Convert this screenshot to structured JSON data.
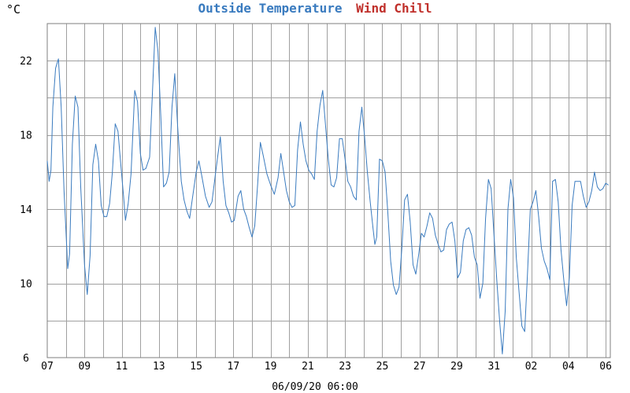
{
  "chart_data": {
    "type": "line",
    "title": "Outside Temperature Wind Chill",
    "legend": [
      {
        "name": "Outside Temperature",
        "color": "#3a7bbf"
      },
      {
        "name": "Wind Chill",
        "color": "#c0302b"
      }
    ],
    "unit_label": "°C",
    "xlabel": "06/09/20 06:00",
    "x_tick_labels": [
      "07",
      "09",
      "11",
      "13",
      "15",
      "17",
      "19",
      "21",
      "23",
      "25",
      "27",
      "29",
      "31",
      "02",
      "04",
      "06"
    ],
    "x_tick_days": [
      0,
      2,
      4,
      6,
      8,
      10,
      12,
      14,
      16,
      18,
      20,
      22,
      24,
      26,
      28,
      30
    ],
    "xlim_days": [
      0,
      30.25
    ],
    "y_tick_labels": [
      "6",
      "10",
      "14",
      "18",
      "22"
    ],
    "y_ticks": [
      6,
      10,
      14,
      18,
      22
    ],
    "ylim": [
      6,
      24
    ],
    "series": [
      {
        "name": "Outside Temperature",
        "color": "#3a7bbf",
        "points": [
          [
            0.0,
            16.6
          ],
          [
            0.1,
            15.5
          ],
          [
            0.2,
            16.1
          ],
          [
            0.3,
            19.5
          ],
          [
            0.45,
            21.6
          ],
          [
            0.6,
            22.1
          ],
          [
            0.75,
            19.5
          ],
          [
            0.9,
            15.0
          ],
          [
            1.1,
            10.8
          ],
          [
            1.2,
            11.6
          ],
          [
            1.35,
            17.5
          ],
          [
            1.5,
            20.1
          ],
          [
            1.65,
            19.5
          ],
          [
            1.8,
            15.2
          ],
          [
            2.0,
            11.0
          ],
          [
            2.15,
            9.4
          ],
          [
            2.3,
            11.5
          ],
          [
            2.45,
            16.4
          ],
          [
            2.6,
            17.5
          ],
          [
            2.75,
            16.6
          ],
          [
            2.9,
            14.2
          ],
          [
            3.05,
            13.6
          ],
          [
            3.2,
            13.6
          ],
          [
            3.35,
            14.3
          ],
          [
            3.5,
            16.0
          ],
          [
            3.65,
            18.6
          ],
          [
            3.8,
            18.2
          ],
          [
            3.95,
            16.4
          ],
          [
            4.1,
            14.7
          ],
          [
            4.2,
            13.4
          ],
          [
            4.35,
            14.3
          ],
          [
            4.5,
            15.9
          ],
          [
            4.7,
            20.4
          ],
          [
            4.85,
            19.8
          ],
          [
            5.0,
            17.0
          ],
          [
            5.15,
            16.1
          ],
          [
            5.3,
            16.2
          ],
          [
            5.5,
            16.8
          ],
          [
            5.65,
            20.2
          ],
          [
            5.8,
            23.8
          ],
          [
            5.95,
            22.5
          ],
          [
            6.1,
            19.0
          ],
          [
            6.25,
            15.2
          ],
          [
            6.4,
            15.4
          ],
          [
            6.55,
            16.0
          ],
          [
            6.7,
            19.5
          ],
          [
            6.85,
            21.3
          ],
          [
            7.0,
            18.5
          ],
          [
            7.2,
            15.5
          ],
          [
            7.35,
            14.5
          ],
          [
            7.5,
            13.9
          ],
          [
            7.65,
            13.5
          ],
          [
            7.8,
            14.6
          ],
          [
            8.0,
            16.0
          ],
          [
            8.15,
            16.6
          ],
          [
            8.3,
            15.8
          ],
          [
            8.5,
            14.7
          ],
          [
            8.7,
            14.1
          ],
          [
            8.85,
            14.4
          ],
          [
            9.0,
            15.6
          ],
          [
            9.15,
            16.8
          ],
          [
            9.3,
            17.9
          ],
          [
            9.45,
            15.5
          ],
          [
            9.6,
            14.2
          ],
          [
            9.75,
            13.8
          ],
          [
            9.9,
            13.3
          ],
          [
            10.05,
            13.4
          ],
          [
            10.25,
            14.7
          ],
          [
            10.4,
            15.0
          ],
          [
            10.55,
            14.0
          ],
          [
            10.7,
            13.6
          ],
          [
            10.85,
            13.0
          ],
          [
            11.0,
            12.5
          ],
          [
            11.15,
            13.1
          ],
          [
            11.3,
            15.3
          ],
          [
            11.45,
            17.6
          ],
          [
            11.6,
            16.9
          ],
          [
            11.8,
            15.9
          ],
          [
            12.0,
            15.3
          ],
          [
            12.2,
            14.8
          ],
          [
            12.4,
            15.7
          ],
          [
            12.55,
            17.0
          ],
          [
            12.7,
            16.0
          ],
          [
            12.85,
            15.0
          ],
          [
            13.0,
            14.4
          ],
          [
            13.15,
            14.1
          ],
          [
            13.3,
            14.2
          ],
          [
            13.45,
            17.2
          ],
          [
            13.6,
            18.7
          ],
          [
            13.75,
            17.5
          ],
          [
            13.9,
            16.6
          ],
          [
            14.05,
            16.1
          ],
          [
            14.2,
            15.9
          ],
          [
            14.35,
            15.6
          ],
          [
            14.5,
            18.2
          ],
          [
            14.65,
            19.6
          ],
          [
            14.8,
            20.4
          ],
          [
            14.95,
            18.5
          ],
          [
            15.1,
            16.7
          ],
          [
            15.25,
            15.3
          ],
          [
            15.4,
            15.2
          ],
          [
            15.55,
            15.7
          ],
          [
            15.7,
            17.8
          ],
          [
            15.85,
            17.8
          ],
          [
            16.0,
            16.7
          ],
          [
            16.15,
            15.5
          ],
          [
            16.3,
            15.2
          ],
          [
            16.45,
            14.7
          ],
          [
            16.6,
            14.5
          ],
          [
            16.75,
            18.2
          ],
          [
            16.9,
            19.5
          ],
          [
            17.05,
            17.9
          ],
          [
            17.2,
            16.0
          ],
          [
            17.35,
            14.4
          ],
          [
            17.5,
            13.0
          ],
          [
            17.6,
            12.1
          ],
          [
            17.7,
            12.5
          ],
          [
            17.85,
            16.7
          ],
          [
            18.0,
            16.6
          ],
          [
            18.15,
            16.0
          ],
          [
            18.3,
            13.8
          ],
          [
            18.45,
            11.2
          ],
          [
            18.6,
            9.9
          ],
          [
            18.75,
            9.4
          ],
          [
            18.9,
            9.8
          ],
          [
            19.05,
            11.9
          ],
          [
            19.2,
            14.5
          ],
          [
            19.35,
            14.8
          ],
          [
            19.5,
            13.3
          ],
          [
            19.65,
            11.0
          ],
          [
            19.8,
            10.5
          ],
          [
            19.95,
            11.5
          ],
          [
            20.1,
            12.7
          ],
          [
            20.25,
            12.5
          ],
          [
            20.4,
            13.1
          ],
          [
            20.55,
            13.8
          ],
          [
            20.7,
            13.5
          ],
          [
            20.85,
            12.6
          ],
          [
            21.0,
            12.1
          ],
          [
            21.15,
            11.7
          ],
          [
            21.3,
            11.8
          ],
          [
            21.45,
            12.9
          ],
          [
            21.6,
            13.2
          ],
          [
            21.75,
            13.3
          ],
          [
            21.9,
            12.3
          ],
          [
            22.05,
            10.3
          ],
          [
            22.2,
            10.6
          ],
          [
            22.35,
            12.3
          ],
          [
            22.5,
            12.9
          ],
          [
            22.65,
            13.0
          ],
          [
            22.8,
            12.6
          ],
          [
            22.95,
            11.4
          ],
          [
            23.1,
            11.0
          ],
          [
            23.25,
            9.2
          ],
          [
            23.4,
            10.0
          ],
          [
            23.55,
            13.5
          ],
          [
            23.7,
            15.6
          ],
          [
            23.85,
            15.1
          ],
          [
            24.0,
            12.6
          ],
          [
            24.15,
            10.2
          ],
          [
            24.3,
            8.0
          ],
          [
            24.45,
            6.2
          ],
          [
            24.6,
            8.5
          ],
          [
            24.75,
            14.0
          ],
          [
            24.9,
            15.6
          ],
          [
            25.05,
            14.6
          ],
          [
            25.2,
            11.4
          ],
          [
            25.35,
            9.5
          ],
          [
            25.5,
            7.7
          ],
          [
            25.65,
            7.4
          ],
          [
            25.8,
            10.5
          ],
          [
            25.95,
            14.0
          ],
          [
            26.1,
            14.4
          ],
          [
            26.25,
            15.0
          ],
          [
            26.4,
            13.6
          ],
          [
            26.55,
            11.9
          ],
          [
            26.7,
            11.2
          ],
          [
            26.85,
            10.8
          ],
          [
            27.0,
            10.2
          ],
          [
            27.15,
            15.5
          ],
          [
            27.3,
            15.6
          ],
          [
            27.45,
            14.4
          ],
          [
            27.6,
            11.8
          ],
          [
            27.75,
            10.2
          ],
          [
            27.9,
            8.8
          ],
          [
            28.05,
            10.3
          ],
          [
            28.2,
            14.2
          ],
          [
            28.35,
            15.5
          ],
          [
            28.5,
            15.5
          ],
          [
            28.65,
            15.5
          ],
          [
            28.8,
            14.7
          ],
          [
            28.95,
            14.1
          ],
          [
            29.1,
            14.4
          ],
          [
            29.25,
            15.0
          ],
          [
            29.4,
            16.0
          ],
          [
            29.55,
            15.2
          ],
          [
            29.7,
            15.0
          ],
          [
            29.85,
            15.1
          ],
          [
            30.0,
            15.4
          ],
          [
            30.15,
            15.3
          ]
        ]
      }
    ]
  }
}
